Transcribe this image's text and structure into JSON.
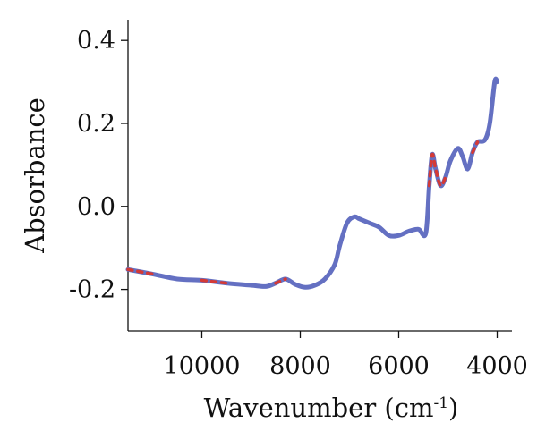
{
  "chart_data": {
    "type": "line",
    "title": "",
    "xlabel": "Wavenumber (cm",
    "xlabel_sup": "-1",
    "xlabel_close": ")",
    "ylabel": "Absorbance",
    "xlim": [
      11500,
      3700
    ],
    "ylim": [
      -0.3,
      0.45
    ],
    "x_reversed": true,
    "grid": false,
    "legend": "none",
    "xticks": [
      {
        "value": 10000,
        "label": "10000"
      },
      {
        "value": 8000,
        "label": "8000"
      },
      {
        "value": 6000,
        "label": "6000"
      },
      {
        "value": 4000,
        "label": "4000"
      }
    ],
    "yticks": [
      {
        "value": 0.4,
        "label": "0.4"
      },
      {
        "value": 0.2,
        "label": "0.2"
      },
      {
        "value": 0.0,
        "label": "0.0"
      },
      {
        "value": -0.2,
        "label": "-0.2"
      }
    ],
    "series": [
      {
        "color": "#6470c2",
        "x": [
          11500,
          11000,
          10500,
          10000,
          9500,
          9000,
          8700,
          8500,
          8300,
          8100,
          7900,
          7700,
          7500,
          7300,
          7200,
          7050,
          6900,
          6800,
          6600,
          6400,
          6200,
          6000,
          5800,
          5600,
          5450,
          5380,
          5320,
          5250,
          5150,
          5050,
          4950,
          4800,
          4700,
          4600,
          4500,
          4400,
          4250,
          4150,
          4050,
          4000
        ],
        "y": [
          -0.152,
          -0.163,
          -0.175,
          -0.178,
          -0.185,
          -0.19,
          -0.193,
          -0.185,
          -0.175,
          -0.188,
          -0.195,
          -0.19,
          -0.175,
          -0.14,
          -0.095,
          -0.04,
          -0.025,
          -0.03,
          -0.04,
          -0.05,
          -0.07,
          -0.07,
          -0.06,
          -0.055,
          -0.065,
          0.05,
          0.125,
          0.09,
          0.05,
          0.07,
          0.11,
          0.14,
          0.12,
          0.09,
          0.13,
          0.155,
          0.16,
          0.2,
          0.3,
          0.3
        ]
      }
    ],
    "highlight_color": "#d43a36",
    "highlight_ranges": [
      [
        11500,
        10900
      ],
      [
        10300,
        9450
      ],
      [
        8550,
        8300
      ],
      [
        5380,
        5020
      ],
      [
        4500,
        4350
      ]
    ]
  }
}
